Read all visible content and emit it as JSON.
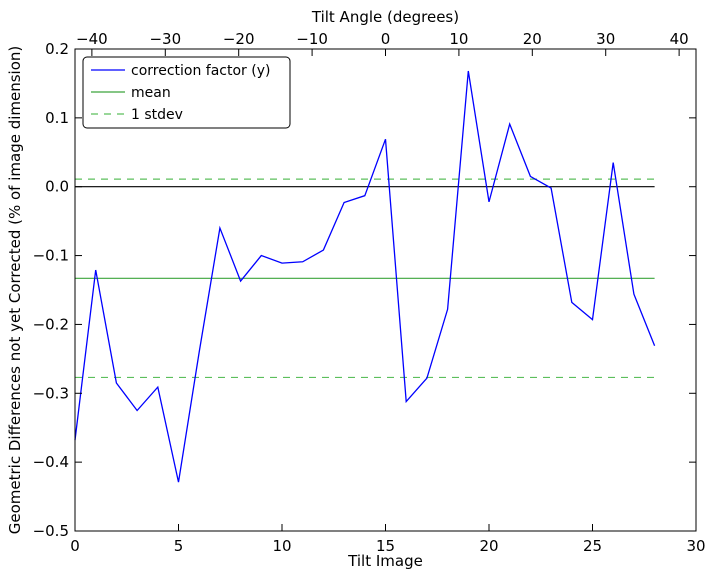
{
  "chart_data": {
    "type": "line",
    "xlabel": "Tilt Image",
    "ylabel": "Geometric Differences not yet Corrected (% of image dimension)",
    "top_xlabel": "Tilt Angle (degrees)",
    "xlim": [
      0,
      30
    ],
    "ylim": [
      -0.5,
      0.2
    ],
    "top_xlim": [
      -42.3,
      42.3
    ],
    "x_ticks": [
      0,
      5,
      10,
      15,
      20,
      25,
      30
    ],
    "x_tick_labels": [
      "0",
      "5",
      "10",
      "15",
      "20",
      "25",
      "30"
    ],
    "y_ticks": [
      -0.5,
      -0.4,
      -0.3,
      -0.2,
      -0.1,
      0.0,
      0.1,
      0.2
    ],
    "y_tick_labels": [
      "−0.5",
      "−0.4",
      "−0.3",
      "−0.2",
      "−0.1",
      "0.0",
      "0.1",
      "0.2"
    ],
    "top_ticks": [
      -40,
      -30,
      -20,
      -10,
      0,
      10,
      20,
      30,
      40
    ],
    "top_tick_labels": [
      "−40",
      "−30",
      "−20",
      "−10",
      "0",
      "10",
      "20",
      "30",
      "40"
    ],
    "grid": false,
    "legend_position": "top-left",
    "series": [
      {
        "name": "correction factor (y)",
        "color": "#0000ff",
        "style": "solid",
        "x": [
          0,
          1,
          2,
          3,
          4,
          5,
          6,
          7,
          8,
          9,
          10,
          11,
          12,
          13,
          14,
          15,
          16,
          17,
          18,
          19,
          20,
          21,
          22,
          23,
          24,
          25,
          26,
          27,
          28
        ],
        "y": [
          -0.368,
          -0.121,
          -0.285,
          -0.325,
          -0.291,
          -0.429,
          -0.24,
          -0.06,
          -0.137,
          -0.1,
          -0.111,
          -0.109,
          -0.092,
          -0.023,
          -0.013,
          0.069,
          -0.312,
          -0.278,
          -0.178,
          0.168,
          -0.022,
          0.091,
          0.015,
          -0.002,
          -0.168,
          -0.193,
          0.035,
          -0.156,
          -0.231
        ]
      },
      {
        "name": "mean",
        "color": "#3ca53c",
        "style": "solid",
        "x": [
          0,
          28
        ],
        "y": [
          -0.133,
          -0.133
        ]
      },
      {
        "name": "1 stdev",
        "color": "#5cbf5c",
        "style": "dashed",
        "x": [
          0,
          28
        ],
        "y": [
          0.011,
          0.011
        ]
      },
      {
        "name": "",
        "color": "#5cbf5c",
        "style": "dashed",
        "x": [
          0,
          28
        ],
        "y": [
          -0.277,
          -0.277
        ]
      },
      {
        "name": "",
        "color": "#000000",
        "style": "solid",
        "x": [
          0,
          28
        ],
        "y": [
          0.0,
          0.0
        ]
      }
    ],
    "legend": [
      "correction factor (y)",
      "mean",
      "1 stdev"
    ]
  }
}
